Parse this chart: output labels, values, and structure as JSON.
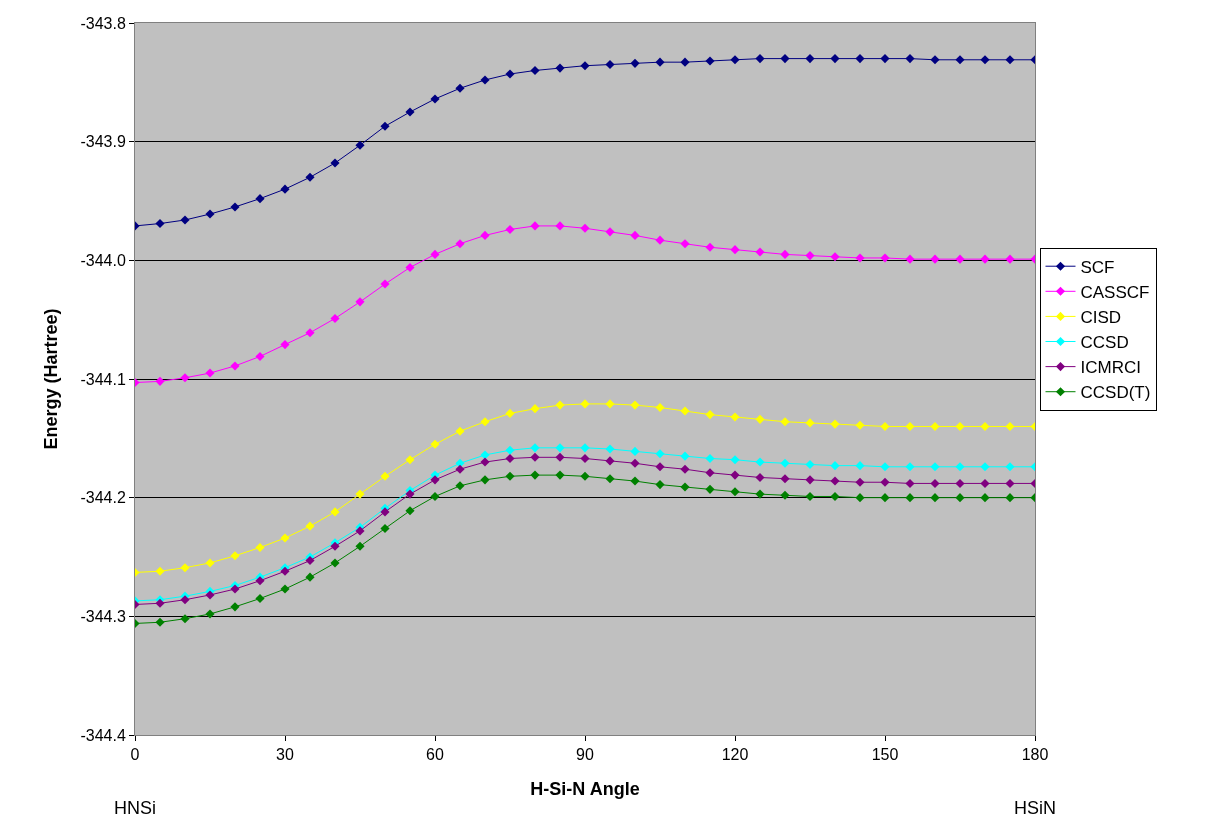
{
  "chart_data": {
    "type": "line",
    "xlabel": "H-Si-N Angle",
    "ylabel": "Energy (Hartree)",
    "annotations": [
      "HNSi",
      "HSiN"
    ],
    "x": [
      0,
      5,
      10,
      15,
      20,
      25,
      30,
      35,
      40,
      45,
      50,
      55,
      60,
      65,
      70,
      75,
      80,
      85,
      90,
      95,
      100,
      105,
      110,
      115,
      120,
      125,
      130,
      135,
      140,
      145,
      150,
      155,
      160,
      165,
      170,
      175,
      180
    ],
    "series": [
      {
        "name": "SCF",
        "color": "#000080",
        "values": [
          -343.971,
          -343.969,
          -343.966,
          -343.961,
          -343.955,
          -343.948,
          -343.94,
          -343.93,
          -343.918,
          -343.903,
          -343.887,
          -343.875,
          -343.864,
          -343.855,
          -343.848,
          -343.843,
          -343.84,
          -343.838,
          -343.836,
          -343.835,
          -343.834,
          -343.833,
          -343.833,
          -343.832,
          -343.831,
          -343.83,
          -343.83,
          -343.83,
          -343.83,
          -343.83,
          -343.83,
          -343.83,
          -343.831,
          -343.831,
          -343.831,
          -343.831,
          -343.831
        ]
      },
      {
        "name": "CASSCF",
        "color": "#ff00ff",
        "values": [
          -344.103,
          -344.102,
          -344.099,
          -344.095,
          -344.089,
          -344.081,
          -344.071,
          -344.061,
          -344.049,
          -344.035,
          -344.02,
          -344.006,
          -343.995,
          -343.986,
          -343.979,
          -343.974,
          -343.971,
          -343.971,
          -343.973,
          -343.976,
          -343.979,
          -343.983,
          -343.986,
          -343.989,
          -343.991,
          -343.993,
          -343.995,
          -343.996,
          -343.997,
          -343.998,
          -343.998,
          -343.999,
          -343.999,
          -343.999,
          -343.999,
          -343.999,
          -343.999
        ]
      },
      {
        "name": "CISD",
        "color": "#ffff00",
        "values": [
          -344.263,
          -344.262,
          -344.259,
          -344.255,
          -344.249,
          -344.242,
          -344.234,
          -344.224,
          -344.212,
          -344.197,
          -344.182,
          -344.168,
          -344.155,
          -344.144,
          -344.136,
          -344.129,
          -344.125,
          -344.122,
          -344.121,
          -344.121,
          -344.122,
          -344.124,
          -344.127,
          -344.13,
          -344.132,
          -344.134,
          -344.136,
          -344.137,
          -344.138,
          -344.139,
          -344.14,
          -344.14,
          -344.14,
          -344.14,
          -344.14,
          -344.14,
          -344.14
        ]
      },
      {
        "name": "CCSD",
        "color": "#00ffff",
        "values": [
          -344.287,
          -344.286,
          -344.283,
          -344.279,
          -344.274,
          -344.267,
          -344.259,
          -344.25,
          -344.238,
          -344.225,
          -344.209,
          -344.194,
          -344.181,
          -344.171,
          -344.164,
          -344.16,
          -344.158,
          -344.158,
          -344.158,
          -344.159,
          -344.161,
          -344.163,
          -344.165,
          -344.167,
          -344.168,
          -344.17,
          -344.171,
          -344.172,
          -344.173,
          -344.173,
          -344.174,
          -344.174,
          -344.174,
          -344.174,
          -344.174,
          -344.174,
          -344.174
        ]
      },
      {
        "name": "ICMRCI",
        "color": "#800080",
        "values": [
          -344.29,
          -344.289,
          -344.286,
          -344.282,
          -344.277,
          -344.27,
          -344.262,
          -344.253,
          -344.241,
          -344.228,
          -344.212,
          -344.197,
          -344.185,
          -344.176,
          -344.17,
          -344.167,
          -344.166,
          -344.166,
          -344.167,
          -344.169,
          -344.171,
          -344.174,
          -344.176,
          -344.179,
          -344.181,
          -344.183,
          -344.184,
          -344.185,
          -344.186,
          -344.187,
          -344.187,
          -344.188,
          -344.188,
          -344.188,
          -344.188,
          -344.188,
          -344.188
        ]
      },
      {
        "name": "CCSD(T)",
        "color": "#008000",
        "values": [
          -344.306,
          -344.305,
          -344.302,
          -344.298,
          -344.292,
          -344.285,
          -344.277,
          -344.267,
          -344.255,
          -344.241,
          -344.226,
          -344.211,
          -344.199,
          -344.19,
          -344.185,
          -344.182,
          -344.181,
          -344.181,
          -344.182,
          -344.184,
          -344.186,
          -344.189,
          -344.191,
          -344.193,
          -344.195,
          -344.197,
          -344.198,
          -344.199,
          -344.199,
          -344.2,
          -344.2,
          -344.2,
          -344.2,
          -344.2,
          -344.2,
          -344.2,
          -344.2
        ]
      }
    ],
    "xlim": [
      0,
      180
    ],
    "xticks": [
      0,
      30,
      60,
      90,
      120,
      150,
      180
    ],
    "ylim": [
      -344.4,
      -343.8
    ],
    "yticks": [
      -343.8,
      -343.9,
      {
        "value": -344,
        "label": "-344.0"
      },
      -344.1,
      -344.2,
      -344.3,
      -344.4
    ],
    "grid": "y",
    "legend": "right",
    "marker": "diamond",
    "line_style": "solid"
  }
}
